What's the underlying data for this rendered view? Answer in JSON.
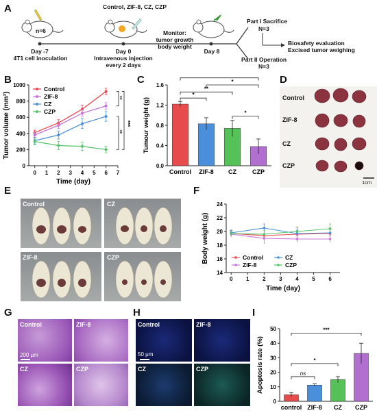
{
  "panels": {
    "a": {
      "letter": "A",
      "group_size": "n=6",
      "treatment_label": "Control, ZIF-8, CZ, CZP",
      "day_minus7": "Day -7",
      "day_minus7_desc": "4T1 cell inoculation",
      "day0": "Day 0",
      "day0_desc1": "Intravenous injection",
      "day0_desc2": "every 2 days",
      "monitor1": "Monitor:",
      "monitor2": "tumor growth",
      "monitor3": "body weight",
      "day8": "Day 8",
      "part1": "Part I Sacrifice",
      "part1_n": "N=3",
      "outcome1": "Biosafety evaluation",
      "outcome2": "Excised tumor weighing",
      "part2": "Part II Operation",
      "part2_n": "N=3"
    },
    "b": {
      "letter": "B"
    },
    "c": {
      "letter": "C"
    },
    "d": {
      "letter": "D",
      "rows": [
        "Control",
        "ZIF-8",
        "CZ",
        "CZP"
      ],
      "scale": "1cm"
    },
    "e": {
      "letter": "E",
      "labels": [
        "Control",
        "CZ",
        "ZIF-8",
        "CZP"
      ]
    },
    "f": {
      "letter": "F"
    },
    "g": {
      "letter": "G",
      "labels": [
        "Control",
        "ZIF-8",
        "CZ",
        "CZP"
      ],
      "scale": "200 μm"
    },
    "h": {
      "letter": "H",
      "labels": [
        "Control",
        "ZIF-8",
        "CZ",
        "CZP"
      ],
      "scale": "50 μm"
    },
    "i": {
      "letter": "I"
    }
  },
  "colors": {
    "control": "#e8494f",
    "zif8": "#c774d9",
    "cz": "#4b8fd6",
    "czp": "#55c46a",
    "bar_control": "#e84b4b",
    "bar_zif8": "#4a8fd9",
    "bar_cz": "#55c258",
    "bar_czp": "#b170d0"
  },
  "chart_data": [
    {
      "id": "B",
      "type": "line",
      "xlabel": "Time (day)",
      "ylabel": "Tumor volume (mm³)",
      "xlim": [
        -0.5,
        7
      ],
      "ylim": [
        0,
        1000
      ],
      "xticks": [
        0,
        1,
        2,
        3,
        4,
        5,
        6,
        7
      ],
      "yticks": [
        0,
        200,
        400,
        600,
        800,
        1000
      ],
      "x": [
        0,
        2,
        4,
        6
      ],
      "series": [
        {
          "name": "Control",
          "values": [
            410,
            530,
            700,
            920
          ],
          "err": [
            30,
            40,
            50,
            40
          ]
        },
        {
          "name": "ZIF-8",
          "values": [
            380,
            500,
            650,
            740
          ],
          "err": [
            30,
            40,
            40,
            40
          ]
        },
        {
          "name": "CZ",
          "values": [
            310,
            380,
            520,
            610
          ],
          "err": [
            40,
            50,
            60,
            60
          ]
        },
        {
          "name": "CZP",
          "values": [
            300,
            250,
            240,
            200
          ],
          "err": [
            40,
            50,
            50,
            40
          ]
        }
      ],
      "significance": [
        "***",
        "**",
        "**"
      ],
      "legend": "top-left"
    },
    {
      "id": "C",
      "type": "bar",
      "categories": [
        "Control",
        "ZIF-8",
        "CZ",
        "CZP"
      ],
      "values": [
        1.22,
        0.83,
        0.74,
        0.38
      ],
      "err": [
        0.05,
        0.12,
        0.16,
        0.15
      ],
      "ylabel": "Tumour weight (g)",
      "ylim": [
        0,
        1.6
      ],
      "yticks": [
        0.0,
        0.4,
        0.8,
        1.2,
        1.6
      ],
      "significance": [
        "***",
        "*",
        "**",
        "*",
        "*"
      ]
    },
    {
      "id": "F",
      "type": "line",
      "xlabel": "Time (day)",
      "ylabel": "Body weight (g)",
      "xlim": [
        -0.3,
        6.6
      ],
      "ylim": [
        14,
        24
      ],
      "xticks": [
        0,
        1,
        2,
        3,
        4,
        5,
        6
      ],
      "yticks": [
        14,
        16,
        18,
        20,
        22,
        24
      ],
      "x": [
        0,
        2,
        4,
        6
      ],
      "series": [
        {
          "name": "Control",
          "values": [
            19.7,
            19.4,
            19.6,
            19.7
          ],
          "err": [
            0.5,
            1.2,
            1.0,
            0.8
          ]
        },
        {
          "name": "ZIF-8",
          "values": [
            19.6,
            19.0,
            18.9,
            18.9
          ],
          "err": [
            0.4,
            0.6,
            0.5,
            0.5
          ]
        },
        {
          "name": "CZ",
          "values": [
            19.8,
            20.5,
            19.7,
            19.8
          ],
          "err": [
            0.4,
            0.6,
            0.5,
            0.5
          ]
        },
        {
          "name": "CZP",
          "values": [
            19.7,
            19.6,
            20.0,
            20.4
          ],
          "err": [
            0.4,
            0.5,
            0.6,
            0.7
          ]
        }
      ],
      "legend": "bottom"
    },
    {
      "id": "I",
      "type": "bar",
      "categories": [
        "control",
        "ZIF-8",
        "CZ",
        "CZP"
      ],
      "values": [
        4.5,
        11.2,
        15.0,
        33.0
      ],
      "err": [
        1.5,
        0.8,
        2.0,
        7.0
      ],
      "ylabel": "Apoptosis rate (%)",
      "ylim": [
        0,
        50
      ],
      "yticks": [
        0,
        10,
        20,
        30,
        40,
        50
      ],
      "significance": [
        "***",
        "*",
        "ns"
      ]
    }
  ]
}
